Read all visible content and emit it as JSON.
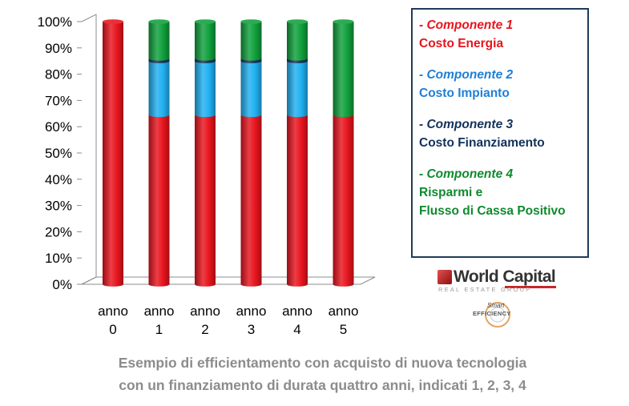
{
  "chart_data": {
    "type": "bar",
    "stacked": true,
    "percent_stacked": true,
    "categories": [
      [
        "anno",
        "0"
      ],
      [
        "anno",
        "1"
      ],
      [
        "anno",
        "2"
      ],
      [
        "anno",
        "3"
      ],
      [
        "anno",
        "4"
      ],
      [
        "anno",
        "5"
      ]
    ],
    "series": [
      {
        "key": "energia",
        "color": "#e8141d",
        "values": [
          100,
          64.5,
          64.5,
          64.5,
          64.5,
          64.5
        ]
      },
      {
        "key": "impianto",
        "color": "#20b0f0",
        "values": [
          0,
          20.5,
          20.5,
          20.5,
          20.5,
          0
        ]
      },
      {
        "key": "finanziamento",
        "color": "#12325a",
        "values": [
          0,
          1,
          1,
          1,
          1,
          0
        ]
      },
      {
        "key": "risparmi",
        "color": "#0fa03c",
        "values": [
          0,
          14,
          14,
          14,
          14,
          35.5
        ]
      }
    ],
    "y_ticks": [
      "0%",
      "10%",
      "20%",
      "30%",
      "40%",
      "50%",
      "60%",
      "70%",
      "80%",
      "90%",
      "100%"
    ],
    "ylim": [
      0,
      100
    ],
    "grid": false,
    "legend_position": "right",
    "title": "",
    "xlabel": "",
    "ylabel": ""
  },
  "legend": {
    "items": [
      {
        "comp": "- Componente 1",
        "lines": [
          "Costo Energia"
        ],
        "color": "#e8141d"
      },
      {
        "comp": "- Componente 2",
        "lines": [
          "Costo Impianto"
        ],
        "color": "#1f7fd6"
      },
      {
        "comp": "- Componente 3",
        "lines": [
          "Costo Finanziamento"
        ],
        "color": "#12325a"
      },
      {
        "comp": "- Componente 4",
        "lines": [
          "Risparmi e",
          "Flusso di Cassa Positivo"
        ],
        "color": "#0f8a2e"
      }
    ]
  },
  "logos": {
    "world_capital": {
      "name": "World Capital",
      "sub": "REAL ESTATE GROUP"
    },
    "smart_efficiency": {
      "line1": "Smart",
      "line2": "EFFICIENCY"
    }
  },
  "caption": {
    "line1": "Esempio di efficientamento con acquisto di nuova tecnologia",
    "line2": "con un finanziamento di durata quattro anni, indicati 1, 2, 3, 4"
  }
}
